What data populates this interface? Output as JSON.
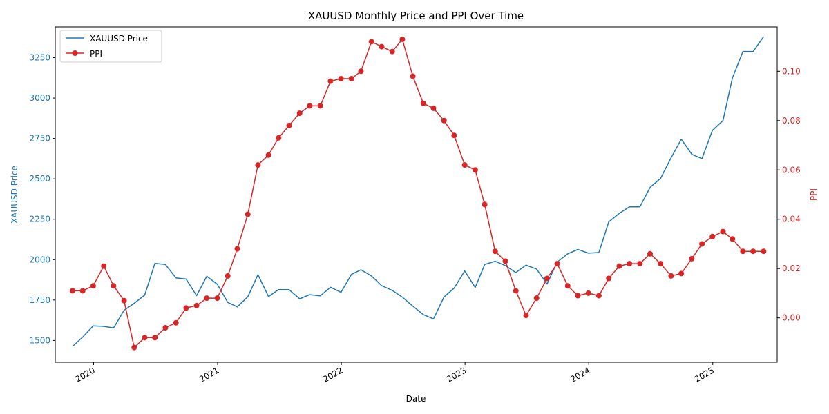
{
  "chart_data": {
    "type": "line",
    "title": "XAUUSD Monthly Price and PPI Over Time",
    "xlabel": "Date",
    "ylabel_left": "XAUUSD Price",
    "ylabel_right": "PPI",
    "colors": {
      "price": "#1f77b4",
      "ppi": "#d62728"
    },
    "x_ticks": [
      "2020",
      "2021",
      "2022",
      "2023",
      "2024",
      "2025"
    ],
    "y_left_ticks": [
      1500,
      1750,
      2000,
      2250,
      2500,
      2750,
      3000,
      3250
    ],
    "y_right_ticks": [
      "0.00",
      "0.02",
      "0.04",
      "0.06",
      "0.08",
      "0.10"
    ],
    "ylim_left": [
      1365,
      3440
    ],
    "ylim_right": [
      -0.018,
      0.118
    ],
    "xlim": [
      "2019-09-10",
      "2025-07-10"
    ],
    "legend": {
      "position": "upper-left",
      "entries": [
        "XAUUSD Price",
        "PPI"
      ]
    },
    "grid": false,
    "dates": [
      "2019-10-31",
      "2019-11-30",
      "2019-12-31",
      "2020-01-31",
      "2020-02-29",
      "2020-03-31",
      "2020-04-30",
      "2020-05-31",
      "2020-06-30",
      "2020-07-31",
      "2020-08-31",
      "2020-09-30",
      "2020-10-31",
      "2020-11-30",
      "2020-12-31",
      "2021-01-31",
      "2021-02-28",
      "2021-03-31",
      "2021-04-30",
      "2021-05-31",
      "2021-06-30",
      "2021-07-31",
      "2021-08-31",
      "2021-09-30",
      "2021-10-31",
      "2021-11-30",
      "2021-12-31",
      "2022-01-31",
      "2022-02-28",
      "2022-03-31",
      "2022-04-30",
      "2022-05-31",
      "2022-06-30",
      "2022-07-31",
      "2022-08-31",
      "2022-09-30",
      "2022-10-31",
      "2022-11-30",
      "2022-12-31",
      "2023-01-31",
      "2023-02-28",
      "2023-03-31",
      "2023-04-30",
      "2023-05-31",
      "2023-06-30",
      "2023-07-31",
      "2023-08-31",
      "2023-09-30",
      "2023-10-31",
      "2023-11-30",
      "2023-12-31",
      "2024-01-31",
      "2024-02-29",
      "2024-03-31",
      "2024-04-30",
      "2024-05-31",
      "2024-06-30",
      "2024-07-31",
      "2024-08-31",
      "2024-09-30",
      "2024-10-31",
      "2024-11-30",
      "2024-12-31",
      "2025-01-31",
      "2025-02-28",
      "2025-03-31",
      "2025-04-30",
      "2025-05-31"
    ],
    "series": [
      {
        "name": "XAUUSD Price",
        "axis": "left",
        "values": [
          1463,
          1521,
          1590,
          1587,
          1577,
          1687,
          1730,
          1781,
          1977,
          1970,
          1887,
          1880,
          1777,
          1897,
          1848,
          1735,
          1708,
          1770,
          1907,
          1772,
          1814,
          1814,
          1758,
          1783,
          1776,
          1829,
          1798,
          1909,
          1937,
          1899,
          1839,
          1810,
          1768,
          1712,
          1660,
          1633,
          1769,
          1824,
          1930,
          1828,
          1970,
          1990,
          1963,
          1920,
          1966,
          1942,
          1849,
          1985,
          2036,
          2063,
          2040,
          2044,
          2234,
          2286,
          2327,
          2327,
          2447,
          2503,
          2630,
          2745,
          2652,
          2625,
          2800,
          2860,
          3124,
          3288,
          3288,
          3380
        ]
      },
      {
        "name": "PPI",
        "axis": "right",
        "values": [
          0.011,
          0.011,
          0.013,
          0.021,
          0.013,
          0.007,
          -0.012,
          -0.008,
          -0.008,
          -0.004,
          -0.002,
          0.004,
          0.005,
          0.008,
          0.008,
          0.017,
          0.028,
          0.042,
          0.062,
          0.066,
          0.073,
          0.078,
          0.083,
          0.086,
          0.086,
          0.096,
          0.097,
          0.097,
          0.1,
          0.112,
          0.11,
          0.108,
          0.113,
          0.098,
          0.087,
          0.085,
          0.08,
          0.074,
          0.062,
          0.06,
          0.046,
          0.027,
          0.023,
          0.011,
          0.001,
          0.008,
          0.016,
          0.022,
          0.013,
          0.009,
          0.01,
          0.009,
          0.016,
          0.021,
          0.022,
          0.022,
          0.026,
          0.022,
          0.017,
          0.018,
          0.024,
          0.03,
          0.033,
          0.035,
          0.032,
          0.027,
          0.027,
          0.027
        ]
      }
    ]
  }
}
